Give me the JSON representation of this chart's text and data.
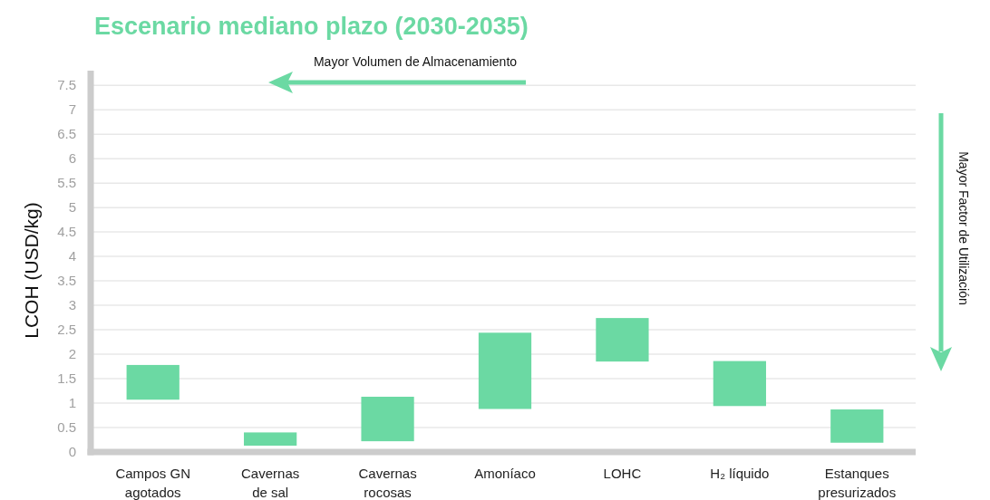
{
  "chart_data": {
    "type": "bar",
    "title": "Escenario mediano plazo (2030-2035)",
    "ylabel": "LCOH (USD/kg)",
    "categories": [
      "Campos GN agotados",
      "Cavernas de sal",
      "Cavernas rocosas",
      "Amoníaco",
      "LOHC",
      "H₂ líquido",
      "Estanques presurizados"
    ],
    "base": [
      1.07,
      0.13,
      0.22,
      0.88,
      1.85,
      0.94,
      0.19
    ],
    "values": [
      0.71,
      0.27,
      0.91,
      1.56,
      0.89,
      0.92,
      0.68
    ],
    "color": "#6bd9a3",
    "ylim": [
      0,
      7.8
    ],
    "yticks": [
      0,
      0.5,
      1,
      1.5,
      2,
      2.5,
      3,
      3.5,
      4,
      4.5,
      5,
      5.5,
      6,
      6.5,
      7,
      7.5
    ],
    "grid": "y",
    "annotations": [
      "Mayor Volumen de Almacenamiento",
      "Mayor Factor de Utilización"
    ]
  }
}
